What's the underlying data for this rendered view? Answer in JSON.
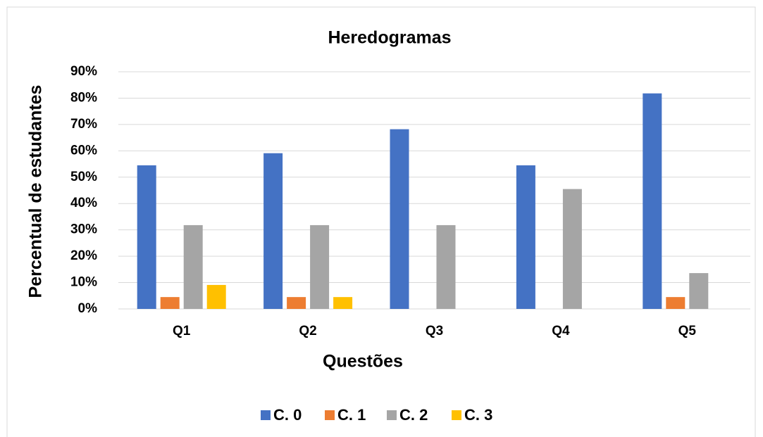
{
  "chart_data": {
    "type": "bar",
    "title": "Heredogramas",
    "x_label": "Questões",
    "y_label": "Percentual de estudantes",
    "categories": [
      "Q1",
      "Q2",
      "Q3",
      "Q4",
      "Q5"
    ],
    "series": [
      {
        "name": "C. 0",
        "color": "#4472c4",
        "values": [
          54.5,
          59.1,
          68.2,
          54.5,
          81.8
        ]
      },
      {
        "name": "C. 1",
        "color": "#ed7d31",
        "values": [
          4.5,
          4.5,
          0,
          0,
          4.5
        ]
      },
      {
        "name": "C. 2",
        "color": "#a5a5a5",
        "values": [
          31.8,
          31.8,
          31.8,
          45.5,
          13.6
        ]
      },
      {
        "name": "C. 3",
        "color": "#ffc000",
        "values": [
          9.1,
          4.5,
          0,
          0,
          0
        ]
      }
    ],
    "ylim": [
      0,
      90
    ],
    "yticks": [
      {
        "value": 0,
        "label": "0%"
      },
      {
        "value": 10,
        "label": "10%"
      },
      {
        "value": 20,
        "label": "20%"
      },
      {
        "value": 30,
        "label": "30%"
      },
      {
        "value": 40,
        "label": "40%"
      },
      {
        "value": 50,
        "label": "50%"
      },
      {
        "value": 60,
        "label": "60%"
      },
      {
        "value": 70,
        "label": "70%"
      },
      {
        "value": 80,
        "label": "80%"
      },
      {
        "value": 90,
        "label": "90%"
      }
    ],
    "grid": true,
    "legend": "bottom"
  }
}
